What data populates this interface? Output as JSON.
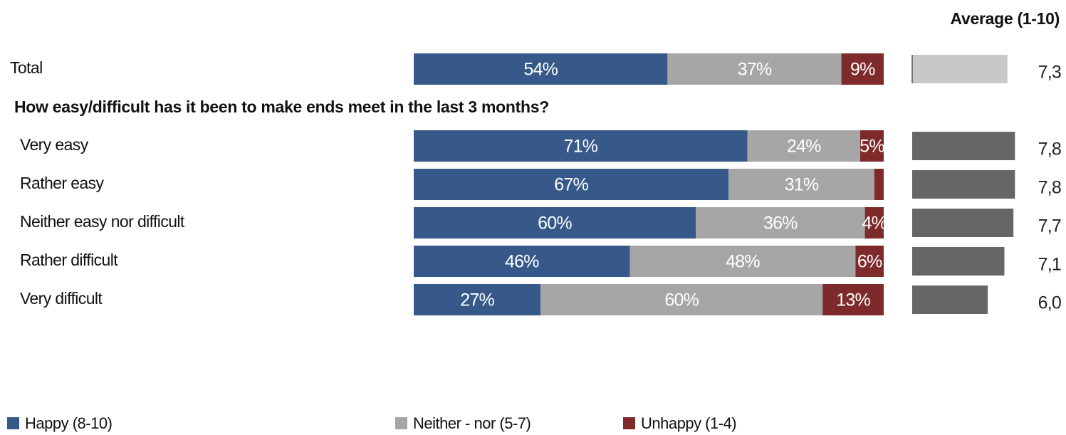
{
  "chart_data": {
    "type": "bar",
    "orientation": "horizontal",
    "stacked": true,
    "categories": [
      "Total",
      "Very easy",
      "Rather easy",
      "Neither easy nor difficult",
      "Rather difficult",
      "Very difficult"
    ],
    "group_title": "How easy/difficult has it been to make ends meet in the last 3 months?",
    "xlim": [
      0,
      100
    ],
    "series": [
      {
        "name": "Happy (8-10)",
        "color": "#36598a",
        "values": [
          54,
          71,
          67,
          60,
          46,
          27
        ],
        "value_labels": [
          "54%",
          "71%",
          "67%",
          "60%",
          "46%",
          "27%"
        ]
      },
      {
        "name": "Neither - nor (5-7)",
        "color": "#a6a6a6",
        "values": [
          37,
          24,
          31,
          36,
          48,
          60
        ],
        "value_labels": [
          "37%",
          "24%",
          "31%",
          "36%",
          "48%",
          "60%"
        ]
      },
      {
        "name": "Unhappy (1-4)",
        "color": "#7f2a2a",
        "values": [
          9,
          5,
          2,
          4,
          6,
          13
        ],
        "value_labels": [
          "9%",
          "5%",
          null,
          "4%",
          "6%",
          "13%"
        ]
      }
    ],
    "averages": {
      "title": "Average (1-10)",
      "xlim": [
        1,
        10
      ],
      "values": [
        7.3,
        7.8,
        7.8,
        7.7,
        7.1,
        6.0
      ],
      "value_labels": [
        "7,3",
        "7,8",
        "7,8",
        "7,7",
        "7,1",
        "6,0"
      ],
      "colors": [
        "#c8c8c8",
        "#666666",
        "#666666",
        "#666666",
        "#666666",
        "#666666"
      ]
    }
  }
}
